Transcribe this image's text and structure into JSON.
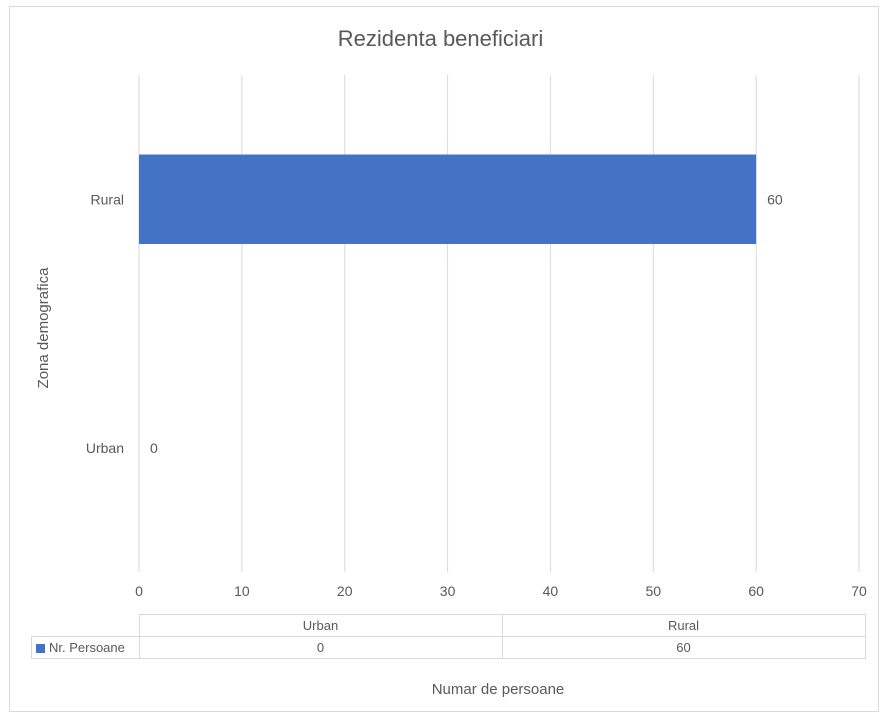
{
  "chart_data": {
    "type": "bar",
    "orientation": "horizontal",
    "title": "Rezidenta beneficiari",
    "xlabel": "Numar de persoane",
    "ylabel": "Zona demografica",
    "categories": [
      "Urban",
      "Rural"
    ],
    "series": [
      {
        "name": "Nr. Persoane",
        "values": [
          0,
          60
        ],
        "color": "#4472c4"
      }
    ],
    "xlim": [
      0,
      70
    ],
    "xticks": [
      0,
      10,
      20,
      30,
      40,
      50,
      60,
      70
    ],
    "grid": true,
    "data_labels": [
      "0",
      "60"
    ],
    "legend": "data-table"
  },
  "data_table": {
    "headers": [
      "Urban",
      "Rural"
    ],
    "row_label": "Nr. Persoane",
    "values": [
      "0",
      "60"
    ]
  }
}
